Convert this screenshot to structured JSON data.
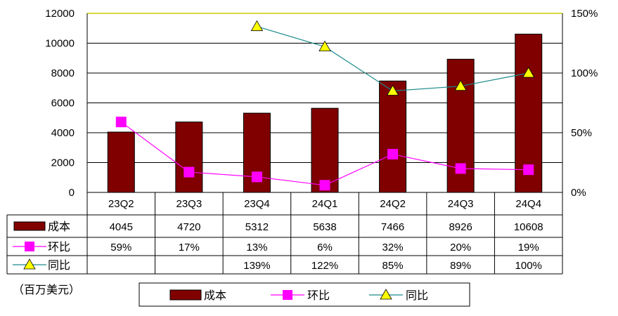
{
  "unit_label": "（百万美元）",
  "colors": {
    "cost": "#800000",
    "qoq": "#ff00ff",
    "yoy_line": "#1a8a8a",
    "yoy_marker": "#ffff00",
    "top_line": "#cccc00"
  },
  "chart_data": {
    "type": "bar",
    "categories": [
      "23Q2",
      "23Q3",
      "23Q4",
      "24Q1",
      "24Q2",
      "24Q3",
      "24Q4"
    ],
    "series": [
      {
        "name": "成本",
        "type": "bar",
        "axis": "left",
        "values": [
          4045,
          4720,
          5312,
          5638,
          7466,
          8926,
          10608
        ],
        "labels": [
          "4045",
          "4720",
          "5312",
          "5638",
          "7466",
          "8926",
          "10608"
        ]
      },
      {
        "name": "环比",
        "type": "line",
        "axis": "right",
        "values": [
          59,
          17,
          13,
          6,
          32,
          20,
          19
        ],
        "labels": [
          "59%",
          "17%",
          "13%",
          "6%",
          "32%",
          "20%",
          "19%"
        ]
      },
      {
        "name": "同比",
        "type": "line",
        "axis": "right",
        "values": [
          null,
          null,
          139,
          122,
          85,
          89,
          100
        ],
        "labels": [
          "",
          "",
          "139%",
          "122%",
          "85%",
          "89%",
          "100%"
        ]
      }
    ],
    "left_axis": {
      "ylim": [
        0,
        12000
      ],
      "ticks": [
        "0",
        "2000",
        "4000",
        "6000",
        "8000",
        "10000",
        "12000"
      ]
    },
    "right_axis": {
      "ylim": [
        0,
        150
      ],
      "ticks": [
        "0%",
        "50%",
        "100%",
        "150%"
      ]
    },
    "legend": {
      "placement": "bottom",
      "items": [
        "成本",
        "环比",
        "同比"
      ]
    },
    "grid": true
  }
}
